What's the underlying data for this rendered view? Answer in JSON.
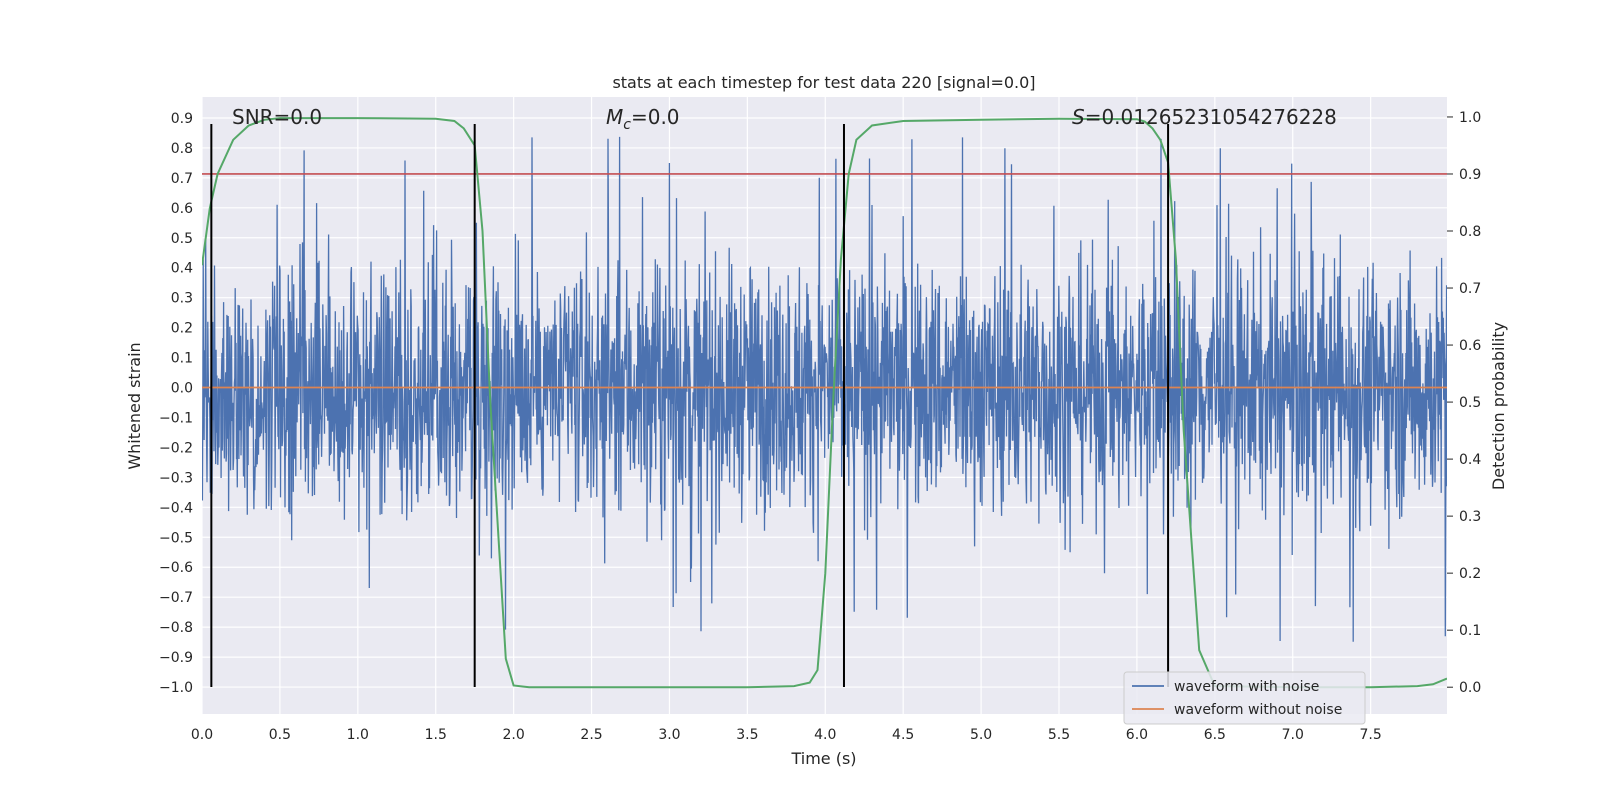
{
  "chart_data": {
    "type": "line",
    "title": "stats at each timestep for test data 220 [signal=0.0]",
    "xlabel": "Time (s)",
    "ylabel": "Whitened strain",
    "y2label": "Detection probability",
    "xlim": [
      0.0,
      7.99
    ],
    "ylim": [
      -1.09,
      0.97
    ],
    "y2lim": [
      -0.047,
      1.035
    ],
    "x_ticks": [
      0.0,
      0.5,
      1.0,
      1.5,
      2.0,
      2.5,
      3.0,
      3.5,
      4.0,
      4.5,
      5.0,
      5.5,
      6.0,
      6.5,
      7.0,
      7.5
    ],
    "x_tick_labels": [
      "0.0",
      "0.5",
      "1.0",
      "1.5",
      "2.0",
      "2.5",
      "3.0",
      "3.5",
      "4.0",
      "4.5",
      "5.0",
      "5.5",
      "6.0",
      "6.5",
      "7.0",
      "7.5"
    ],
    "y_ticks": [
      0.9,
      0.8,
      0.7,
      0.6,
      0.5,
      0.4,
      0.3,
      0.2,
      0.1,
      0.0,
      -0.1,
      -0.2,
      -0.3,
      -0.4,
      -0.5,
      -0.6,
      -0.7,
      -0.8,
      -0.9,
      -1.0
    ],
    "y_tick_labels": [
      "0.9",
      "0.8",
      "0.7",
      "0.6",
      "0.5",
      "0.4",
      "0.3",
      "0.2",
      "0.1",
      "0.0",
      "−0.1",
      "−0.2",
      "−0.3",
      "−0.4",
      "−0.5",
      "−0.6",
      "−0.7",
      "−0.8",
      "−0.9",
      "−1.0"
    ],
    "y2_ticks": [
      1.0,
      0.9,
      0.8,
      0.7,
      0.6,
      0.5,
      0.4,
      0.3,
      0.2,
      0.1,
      0.0
    ],
    "y2_tick_labels": [
      "1.0",
      "0.9",
      "0.8",
      "0.7",
      "0.6",
      "0.5",
      "0.4",
      "0.3",
      "0.2",
      "0.1",
      "0.0"
    ],
    "grid": true,
    "legend_position": "bottom-right",
    "annotations": {
      "snr": "SNR=0.0",
      "mc_symbol": "M",
      "mc_sub": "c",
      "mc_value": "=0.0",
      "s_symbol": "S",
      "s_value": "=0.01265231054276228"
    },
    "series": [
      {
        "name": "waveform with noise",
        "color": "#4c72b0",
        "noise_envelope": {
          "typical_min": -0.45,
          "typical_max": 0.45,
          "extreme_min": -1.0,
          "extreme_max": 0.88
        }
      },
      {
        "name": "waveform without noise",
        "color": "#dd8452",
        "values": [
          [
            0.0,
            0.0
          ],
          [
            7.99,
            0.0
          ]
        ]
      },
      {
        "name": "",
        "color": "#55a868",
        "axis": "right",
        "x": [
          0.0,
          0.05,
          0.1,
          0.2,
          0.3,
          0.4,
          0.5,
          1.0,
          1.5,
          1.62,
          1.68,
          1.75,
          1.8,
          1.85,
          1.95,
          2.0,
          2.1,
          2.5,
          3.0,
          3.5,
          3.8,
          3.9,
          3.95,
          4.0,
          4.05,
          4.1,
          4.15,
          4.2,
          4.3,
          4.5,
          5.0,
          5.5,
          6.0,
          6.05,
          6.1,
          6.15,
          6.2,
          6.25,
          6.3,
          6.4,
          6.5,
          7.0,
          7.5,
          7.8,
          7.9,
          7.99
        ],
        "y": [
          0.74,
          0.84,
          0.9,
          0.96,
          0.985,
          0.995,
          0.998,
          0.998,
          0.997,
          0.993,
          0.98,
          0.95,
          0.8,
          0.5,
          0.05,
          0.003,
          0.0,
          0.0,
          0.0,
          0.0,
          0.002,
          0.008,
          0.03,
          0.2,
          0.5,
          0.75,
          0.9,
          0.96,
          0.985,
          0.993,
          0.995,
          0.997,
          0.996,
          0.992,
          0.98,
          0.96,
          0.92,
          0.75,
          0.45,
          0.065,
          0.002,
          0.0,
          0.0,
          0.002,
          0.005,
          0.015
        ]
      }
    ],
    "threshold_line": {
      "axis": "right",
      "value": 0.9,
      "color": "#c44e52"
    },
    "vertical_markers": {
      "x": [
        0.06,
        1.75,
        4.12,
        6.2
      ],
      "y_from": -1.0,
      "y_to": 0.88,
      "color": "#000000"
    }
  }
}
